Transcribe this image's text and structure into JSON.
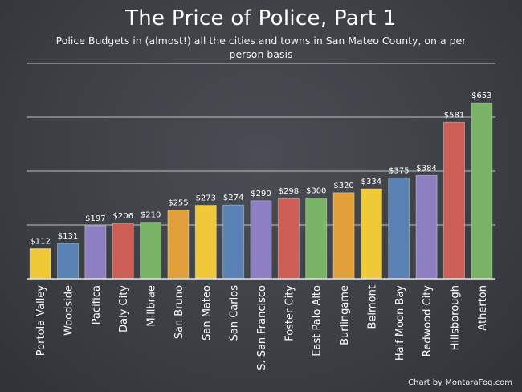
{
  "chart_data": {
    "type": "bar",
    "title": "The Price of Police, Part 1",
    "subtitle": "Police Budgets in (almost!) all the cities and towns in San Mateo County, on a per person basis",
    "categories": [
      "Portola Valley",
      "Woodside",
      "Pacifica",
      "Daly City",
      "Millbrae",
      "San Bruno",
      "San Mateo",
      "San Carlos",
      "S. San Francisco",
      "Foster City",
      "East Palo Alto",
      "Burlingame",
      "Belmont",
      "Half Moon Bay",
      "Redwood City",
      "Hillsborough",
      "Atherton"
    ],
    "values": [
      112,
      131,
      197,
      206,
      210,
      255,
      273,
      274,
      290,
      298,
      300,
      320,
      334,
      375,
      384,
      581,
      653
    ],
    "value_labels": [
      "$112",
      "$131",
      "$197",
      "$206",
      "$210",
      "$255",
      "$273",
      "$274",
      "$290",
      "$298",
      "$300",
      "$320",
      "$334",
      "$375",
      "$384",
      "$581",
      "$653"
    ],
    "colors": [
      "#f0c93a",
      "#5b82b5",
      "#8e7ec2",
      "#cc5e55",
      "#79b466",
      "#e2a03a",
      "#f0c93a",
      "#5b82b5",
      "#8e7ec2",
      "#cc5e55",
      "#79b466",
      "#e2a03a",
      "#f0c93a",
      "#5b82b5",
      "#8e7ec2",
      "#cc5e55",
      "#79b466"
    ],
    "xlabel": "",
    "ylabel": "",
    "ylim": [
      0,
      800
    ],
    "grid": true,
    "gridlines": [
      0,
      200,
      400,
      600,
      800
    ],
    "legend": "none"
  },
  "footer": {
    "credit": "Chart by MontaraFog.com"
  }
}
